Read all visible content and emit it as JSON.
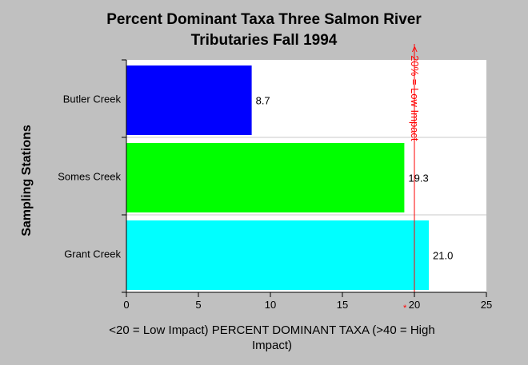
{
  "chart_data": {
    "type": "bar",
    "orientation": "horizontal",
    "title_line1": "Percent Dominant Taxa Three Salmon River",
    "title_line2": "Tributaries Fall 1994",
    "ylabel": "Sampling Stations",
    "xlabel": "<20 = Low Impact) PERCENT DOMINANT TAXA (>40 = High Impact)",
    "categories": [
      "Butler Creek",
      "Somes Creek",
      "Grant Creek"
    ],
    "values": [
      8.7,
      19.3,
      21.0
    ],
    "value_labels": [
      "8.7",
      "19.3",
      "21.0"
    ],
    "colors": [
      "#0000ff",
      "#00ff00",
      "#00ffff"
    ],
    "xlim": [
      0,
      25
    ],
    "xticks": [
      0,
      5,
      10,
      15,
      20,
      25
    ],
    "grid": "horizontal",
    "reference_line": {
      "x": 20,
      "label": "< 20% = Low Impact",
      "marker": "*",
      "color": "#ff0000"
    }
  }
}
